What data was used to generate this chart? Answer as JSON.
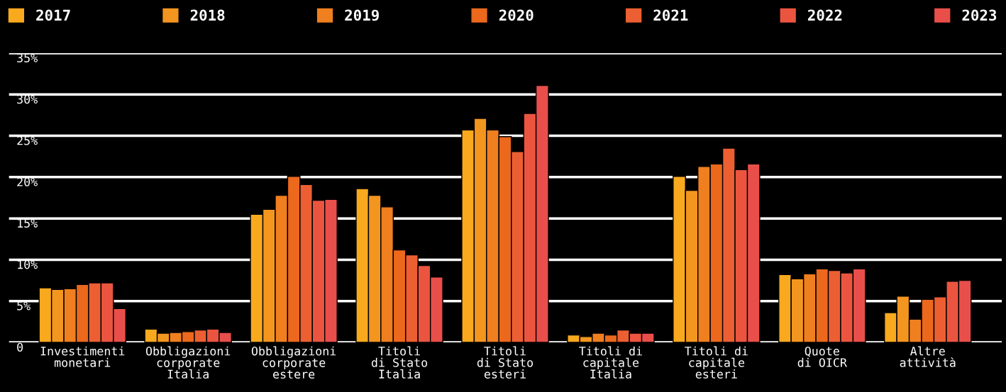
{
  "chart_data": {
    "type": "bar",
    "categories": [
      "Investimenti\nmonetari",
      "Obbligazioni\ncorporate\nItalia",
      "Obbligazioni\ncorporate\nestere",
      "Titoli\ndi Stato\nItalia",
      "Titoli\ndi Stato\nesteri",
      "Titoli di\ncapitale\nItalia",
      "Titoli di\ncapitale\nesteri",
      "Quote\ndi OICR",
      "Altre\nattività"
    ],
    "series": [
      {
        "name": "2017",
        "color": "#f9a91e",
        "values": [
          6.6,
          1.6,
          15.5,
          18.6,
          25.7,
          0.9,
          20.1,
          8.2,
          3.6
        ]
      },
      {
        "name": "2018",
        "color": "#f3961f",
        "values": [
          6.4,
          1.1,
          16.1,
          17.8,
          27.1,
          0.7,
          18.4,
          7.7,
          5.6
        ]
      },
      {
        "name": "2019",
        "color": "#ef7f1f",
        "values": [
          6.5,
          1.2,
          17.8,
          16.4,
          25.7,
          1.1,
          21.3,
          8.3,
          2.8
        ]
      },
      {
        "name": "2020",
        "color": "#ec681c",
        "values": [
          7.0,
          1.3,
          20.1,
          11.2,
          24.9,
          0.9,
          21.6,
          8.9,
          5.2
        ]
      },
      {
        "name": "2021",
        "color": "#ec5f32",
        "values": [
          7.2,
          1.5,
          19.1,
          10.6,
          23.1,
          1.5,
          23.5,
          8.7,
          5.5
        ]
      },
      {
        "name": "2022",
        "color": "#eb5540",
        "values": [
          7.2,
          1.6,
          17.2,
          9.3,
          27.7,
          1.1,
          20.9,
          8.4,
          7.4
        ]
      },
      {
        "name": "2023",
        "color": "#e94f4a",
        "values": [
          4.1,
          1.2,
          17.3,
          7.9,
          31.1,
          1.1,
          21.6,
          8.9,
          7.5
        ]
      }
    ],
    "ylim": [
      0,
      35
    ],
    "yticks": [
      0,
      {
        "value": 5,
        "label": "5%"
      },
      {
        "value": 10,
        "label": "10%"
      },
      {
        "value": 15,
        "label": "15%"
      },
      {
        "value": 20,
        "label": "20%"
      },
      {
        "value": 25,
        "label": "25%"
      },
      {
        "value": 30,
        "label": "30%"
      },
      {
        "value": 35,
        "label": "35%"
      }
    ],
    "grid": "y",
    "legend": "top"
  }
}
